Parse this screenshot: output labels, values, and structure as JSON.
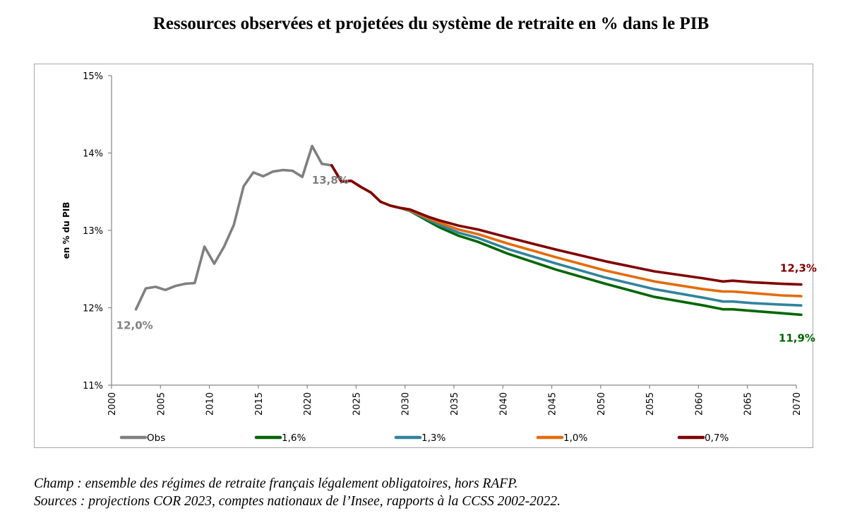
{
  "chart_data": {
    "type": "line",
    "title": "Ressources observées et projetées du système de retraite en % dans le PIB",
    "xlabel": "",
    "ylabel": "en % du PIB",
    "xlim": [
      2000,
      2070
    ],
    "ylim": [
      11,
      15
    ],
    "x_ticks": [
      "2000",
      "2005",
      "2010",
      "2015",
      "2020",
      "2025",
      "2030",
      "2035",
      "2040",
      "2045",
      "2050",
      "2055",
      "2060",
      "2065",
      "2070"
    ],
    "y_ticks": [
      "11%",
      "12%",
      "13%",
      "14%",
      "15%"
    ],
    "grid": false,
    "legend_position": "bottom",
    "series": [
      {
        "name": "Obs",
        "color": "#808080",
        "x": [
          2002,
          2003,
          2004,
          2005,
          2006,
          2007,
          2008,
          2009,
          2010,
          2011,
          2012,
          2013,
          2014,
          2015,
          2016,
          2017,
          2018,
          2019,
          2020,
          2021,
          2022
        ],
        "values": [
          11.98,
          12.25,
          12.27,
          12.23,
          12.28,
          12.31,
          12.32,
          12.79,
          12.57,
          12.79,
          13.07,
          13.57,
          13.75,
          13.7,
          13.76,
          13.78,
          13.77,
          13.69,
          14.09,
          13.86,
          13.84
        ]
      },
      {
        "name": "1,6%",
        "color": "#006600",
        "x": [
          2022,
          2023,
          2024,
          2025,
          2026,
          2027,
          2028,
          2029,
          2030,
          2032,
          2033,
          2035,
          2037,
          2040,
          2045,
          2050,
          2055,
          2060,
          2062,
          2063,
          2065,
          2068,
          2070
        ],
        "values": [
          13.84,
          13.63,
          13.64,
          13.56,
          13.49,
          13.37,
          13.32,
          13.29,
          13.25,
          13.11,
          13.04,
          12.93,
          12.85,
          12.7,
          12.49,
          12.31,
          12.14,
          12.03,
          11.98,
          11.98,
          11.96,
          11.93,
          11.91
        ]
      },
      {
        "name": "1,3%",
        "color": "#31849b",
        "x": [
          2022,
          2023,
          2024,
          2025,
          2026,
          2027,
          2028,
          2029,
          2030,
          2032,
          2033,
          2035,
          2037,
          2040,
          2045,
          2050,
          2055,
          2060,
          2062,
          2063,
          2065,
          2068,
          2070
        ],
        "values": [
          13.84,
          13.63,
          13.64,
          13.56,
          13.49,
          13.37,
          13.32,
          13.29,
          13.25,
          13.13,
          13.07,
          12.97,
          12.9,
          12.76,
          12.57,
          12.39,
          12.24,
          12.13,
          12.08,
          12.08,
          12.06,
          12.04,
          12.03
        ]
      },
      {
        "name": "1,0%",
        "color": "#e46c0a",
        "x": [
          2022,
          2023,
          2024,
          2025,
          2026,
          2027,
          2028,
          2029,
          2030,
          2032,
          2033,
          2035,
          2037,
          2040,
          2045,
          2050,
          2055,
          2060,
          2062,
          2063,
          2065,
          2068,
          2070
        ],
        "values": [
          13.84,
          13.63,
          13.64,
          13.56,
          13.49,
          13.37,
          13.32,
          13.29,
          13.26,
          13.15,
          13.1,
          13.01,
          12.95,
          12.83,
          12.65,
          12.48,
          12.34,
          12.24,
          12.21,
          12.21,
          12.19,
          12.16,
          12.15
        ]
      },
      {
        "name": "0,7%",
        "color": "#800000",
        "x": [
          2022,
          2023,
          2024,
          2025,
          2026,
          2027,
          2028,
          2029,
          2030,
          2032,
          2033,
          2035,
          2037,
          2040,
          2045,
          2050,
          2055,
          2060,
          2062,
          2063,
          2065,
          2068,
          2070
        ],
        "values": [
          13.84,
          13.63,
          13.64,
          13.56,
          13.49,
          13.37,
          13.32,
          13.29,
          13.27,
          13.17,
          13.13,
          13.06,
          13.01,
          12.91,
          12.75,
          12.6,
          12.47,
          12.38,
          12.34,
          12.35,
          12.33,
          12.31,
          12.3
        ]
      }
    ],
    "annotations": [
      {
        "text": "12,0%",
        "x": 2002,
        "y": 11.98,
        "color": "#808080"
      },
      {
        "text": "13,8%",
        "x": 2022,
        "y": 13.84,
        "color": "#808080"
      },
      {
        "text": "12,3%",
        "x": 2070,
        "y": 12.3,
        "color": "#800000"
      },
      {
        "text": "11,9%",
        "x": 2070,
        "y": 11.91,
        "color": "#006600"
      }
    ]
  },
  "notes": {
    "champ": "Champ : ensemble des régimes de retraite français légalement obligatoires, hors RAFP.",
    "sources": "Sources : projections COR 2023, comptes nationaux de l’Insee, rapports à la CCSS 2002-2022."
  }
}
